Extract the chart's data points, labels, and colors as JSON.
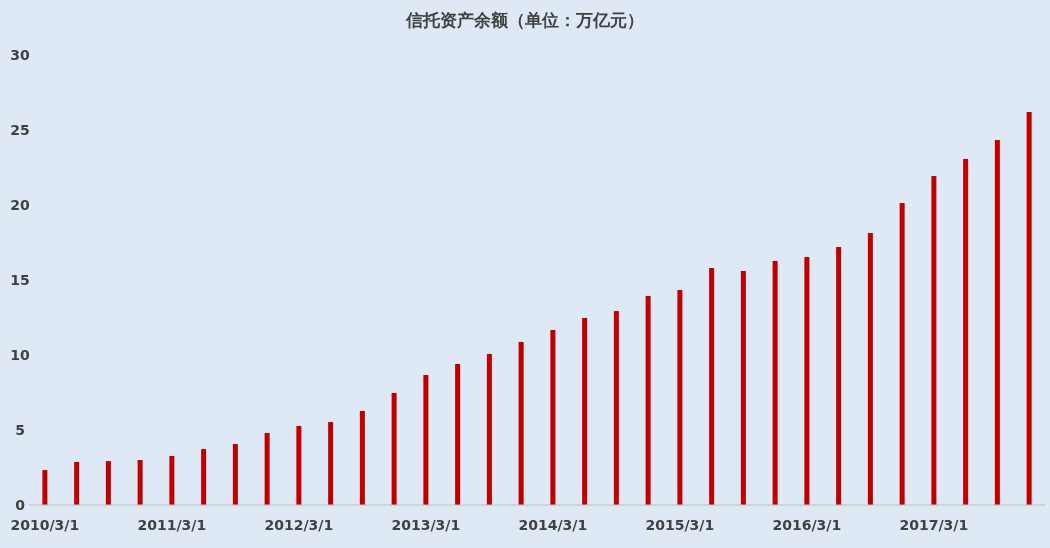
{
  "chart_data": {
    "type": "bar",
    "title": "信托资产余额（单位：万亿元）",
    "categories": [
      "2010/3/1",
      null,
      null,
      null,
      "2011/3/1",
      null,
      null,
      null,
      "2012/3/1",
      null,
      null,
      null,
      "2013/3/1",
      null,
      null,
      null,
      "2014/3/1",
      null,
      null,
      null,
      "2015/3/1",
      null,
      null,
      null,
      "2016/3/1",
      null,
      null,
      null,
      "2017/3/1",
      null,
      null,
      null
    ],
    "values": [
      2.33,
      2.87,
      2.93,
      3.0,
      3.27,
      3.73,
      4.07,
      4.8,
      5.27,
      5.53,
      6.27,
      7.47,
      8.67,
      9.4,
      10.07,
      10.87,
      11.67,
      12.47,
      12.93,
      13.93,
      14.33,
      15.8,
      15.6,
      16.27,
      16.53,
      17.2,
      18.13,
      20.13,
      21.93,
      23.07,
      24.33,
      26.2
    ],
    "color": "#c00000",
    "ylim": [
      0,
      30
    ],
    "yticks": [
      0,
      5,
      10,
      15,
      20,
      25,
      30
    ]
  }
}
